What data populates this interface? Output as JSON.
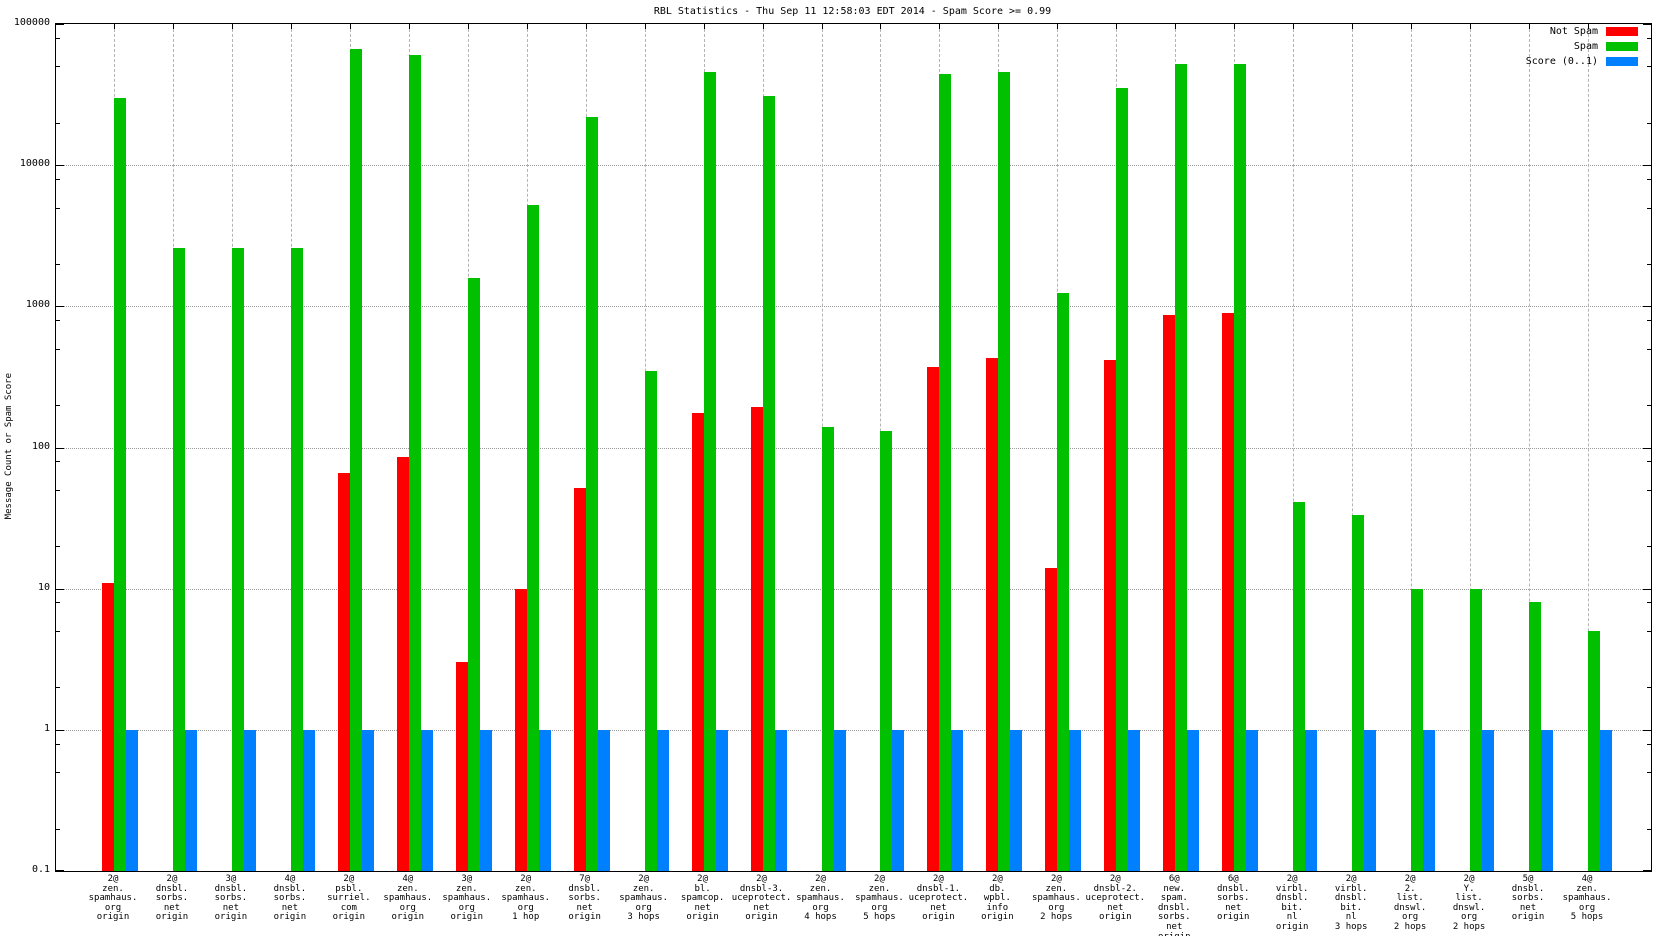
{
  "chart_data": {
    "type": "bar",
    "title": "RBL Statistics - Thu Sep 11 12:58:03 EDT 2014 - Spam Score >= 0.99",
    "xlabel": "",
    "ylabel": "Message Count or Spam Score",
    "yscale": "log",
    "ylim": [
      0.1,
      100000
    ],
    "ytick_labels": [
      "100000",
      "10000",
      "1000",
      "100",
      "10",
      "1",
      "0.1"
    ],
    "ytick_values": [
      100000,
      10000,
      1000,
      100,
      10,
      1,
      0.1
    ],
    "grid": true,
    "legend_position": "top-right",
    "background_color": "#ffffff",
    "grid_color": "#9a9a9a",
    "categories": [
      [
        "2@",
        "zen.",
        "spamhaus.",
        "org",
        "origin"
      ],
      [
        "2@",
        "dnsbl.",
        "sorbs.",
        "net",
        "origin"
      ],
      [
        "3@",
        "dnsbl.",
        "sorbs.",
        "net",
        "origin"
      ],
      [
        "4@",
        "dnsbl.",
        "sorbs.",
        "net",
        "origin"
      ],
      [
        "2@",
        "psbl.",
        "surriel.",
        "com",
        "origin"
      ],
      [
        "4@",
        "zen.",
        "spamhaus.",
        "org",
        "origin"
      ],
      [
        "3@",
        "zen.",
        "spamhaus.",
        "org",
        "origin"
      ],
      [
        "2@",
        "zen.",
        "spamhaus.",
        "org",
        "1 hop"
      ],
      [
        "7@",
        "dnsbl.",
        "sorbs.",
        "net",
        "origin"
      ],
      [
        "2@",
        "zen.",
        "spamhaus.",
        "org",
        "3 hops"
      ],
      [
        "2@",
        "bl.",
        "spamcop.",
        "net",
        "origin"
      ],
      [
        "2@",
        "dnsbl-3.",
        "uceprotect.",
        "net",
        "origin"
      ],
      [
        "2@",
        "zen.",
        "spamhaus.",
        "org",
        "4 hops"
      ],
      [
        "2@",
        "zen.",
        "spamhaus.",
        "org",
        "5 hops"
      ],
      [
        "2@",
        "dnsbl-1.",
        "uceprotect.",
        "net",
        "origin"
      ],
      [
        "2@",
        "db.",
        "wpbl.",
        "info",
        "origin"
      ],
      [
        "2@",
        "zen.",
        "spamhaus.",
        "org",
        "2 hops"
      ],
      [
        "2@",
        "dnsbl-2.",
        "uceprotect.",
        "net",
        "origin"
      ],
      [
        "6@",
        "new.",
        "spam.",
        "dnsbl.",
        "sorbs.",
        "net",
        "origin"
      ],
      [
        "6@",
        "dnsbl.",
        "sorbs.",
        "net",
        "origin"
      ],
      [
        "2@",
        "virbl.",
        "dnsbl.",
        "bit.",
        "nl",
        "origin"
      ],
      [
        "2@",
        "virbl.",
        "dnsbl.",
        "bit.",
        "nl",
        "3 hops"
      ],
      [
        "2@",
        "2.",
        "list.",
        "dnswl.",
        "org",
        "2 hops"
      ],
      [
        "2@",
        "Y.",
        "list.",
        "dnswl.",
        "org",
        "2 hops"
      ],
      [
        "5@",
        "dnsbl.",
        "sorbs.",
        "net",
        "origin"
      ],
      [
        "4@",
        "zen.",
        "spamhaus.",
        "org",
        "5 hops"
      ]
    ],
    "series": [
      {
        "name": "Not Spam",
        "color": "#ff0000",
        "values": [
          11,
          null,
          null,
          null,
          66,
          86,
          3,
          10,
          52,
          null,
          175,
          195,
          null,
          null,
          370,
          430,
          14,
          420,
          870,
          900,
          null,
          null,
          null,
          null,
          null,
          null
        ]
      },
      {
        "name": "Spam",
        "color": "#00c000",
        "values": [
          30000,
          2600,
          2600,
          2600,
          66000,
          60000,
          1600,
          5200,
          22000,
          350,
          46000,
          31000,
          140,
          130,
          44000,
          46000,
          1250,
          35000,
          52000,
          52000,
          41,
          33,
          10,
          10,
          8,
          5
        ]
      },
      {
        "name": "Score (0..1)",
        "color": "#0080ff",
        "values": [
          1,
          1,
          1,
          1,
          1,
          1,
          1,
          1,
          1,
          1,
          1,
          1,
          1,
          1,
          1,
          1,
          1,
          1,
          1,
          1,
          1,
          1,
          1,
          1,
          1,
          1
        ]
      }
    ]
  }
}
